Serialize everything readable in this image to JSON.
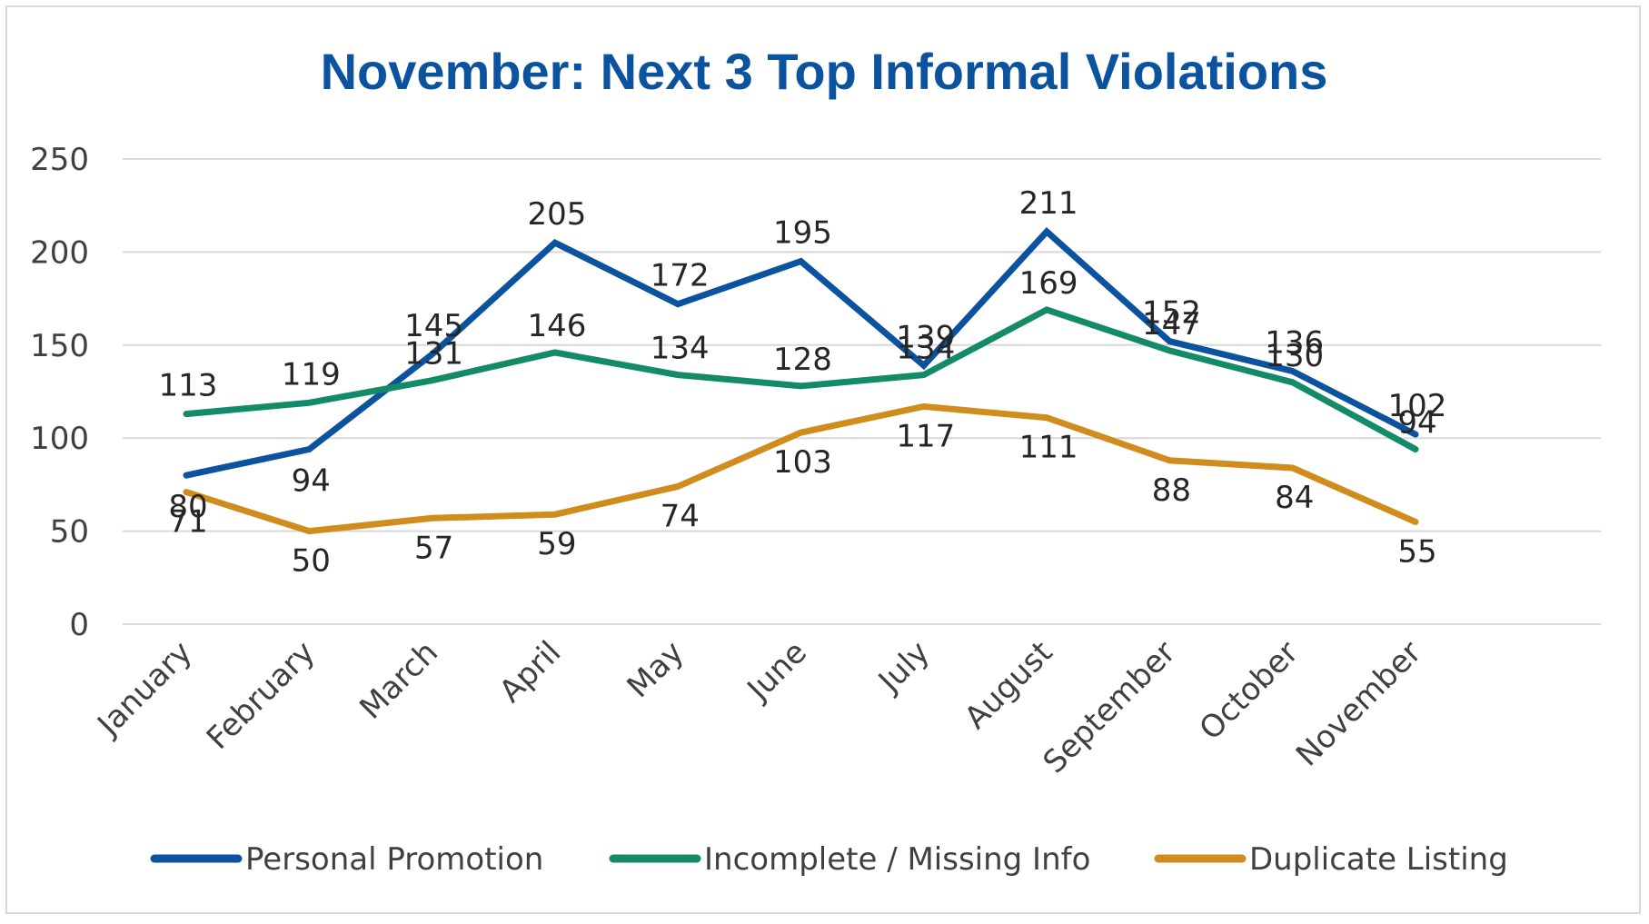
{
  "chart_data": {
    "type": "line",
    "title": "November: Next 3 Top Informal Violations",
    "xlabel": "",
    "ylabel": "",
    "ylim": [
      0,
      250
    ],
    "yticks": [
      "0",
      "50",
      "100",
      "150",
      "200",
      "250"
    ],
    "grid": true,
    "legend_position": "bottom",
    "categories": [
      "January",
      "February",
      "March",
      "April",
      "May",
      "June",
      "July",
      "August",
      "September",
      "October",
      "November"
    ],
    "series": [
      {
        "name": "Personal Promotion",
        "color": "#0B539F",
        "values": [
          80,
          94,
          145,
          205,
          172,
          195,
          139,
          211,
          152,
          136,
          102
        ]
      },
      {
        "name": "Incomplete / Missing Info",
        "color": "#138A68",
        "values": [
          113,
          119,
          131,
          146,
          134,
          128,
          134,
          169,
          147,
          130,
          94
        ]
      },
      {
        "name": "Duplicate Listing",
        "color": "#D08C1D",
        "values": [
          71,
          50,
          57,
          59,
          74,
          103,
          117,
          111,
          88,
          84,
          55
        ]
      }
    ]
  }
}
